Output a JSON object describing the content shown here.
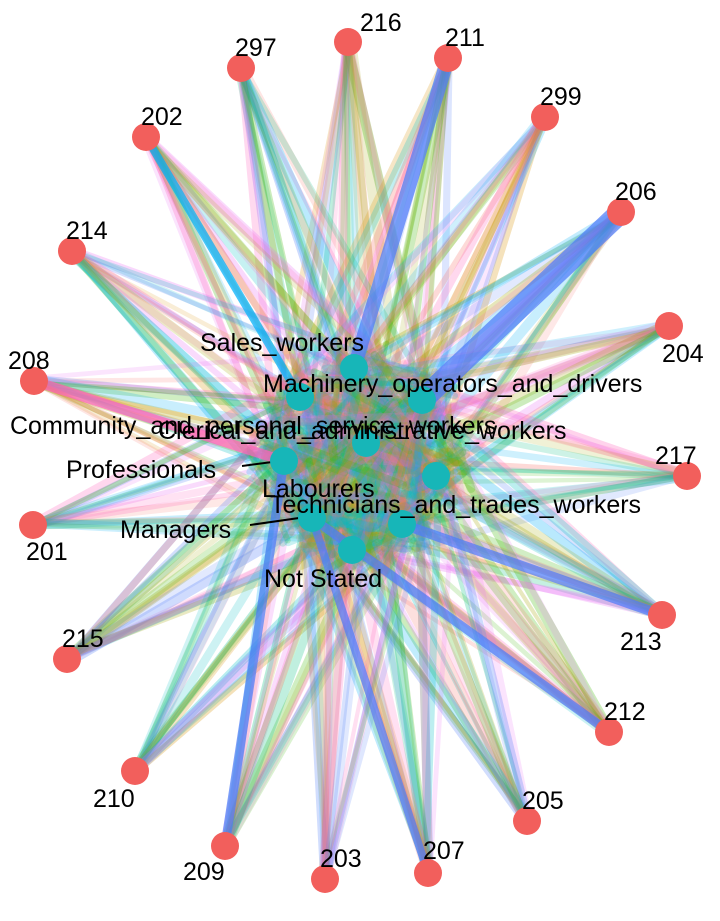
{
  "graph": {
    "colors": {
      "region_node": "#F25F5C",
      "occupation_node": "#17B6B8",
      "edge_palette": [
        "#F8766D",
        "#D89000",
        "#A3A500",
        "#39B600",
        "#00BF7D",
        "#00BFC4",
        "#00B0F6",
        "#4F7CF8",
        "#E76BF3",
        "#FF62BC"
      ]
    },
    "region_nodes": [
      {
        "id": "216",
        "label": "216"
      },
      {
        "id": "211",
        "label": "211"
      },
      {
        "id": "297",
        "label": "297"
      },
      {
        "id": "299",
        "label": "299"
      },
      {
        "id": "202",
        "label": "202"
      },
      {
        "id": "206",
        "label": "206"
      },
      {
        "id": "214",
        "label": "214"
      },
      {
        "id": "204",
        "label": "204"
      },
      {
        "id": "208",
        "label": "208"
      },
      {
        "id": "217",
        "label": "217"
      },
      {
        "id": "201",
        "label": "201"
      },
      {
        "id": "213",
        "label": "213"
      },
      {
        "id": "215",
        "label": "215"
      },
      {
        "id": "212",
        "label": "212"
      },
      {
        "id": "210",
        "label": "210"
      },
      {
        "id": "205",
        "label": "205"
      },
      {
        "id": "209",
        "label": "209"
      },
      {
        "id": "207",
        "label": "207"
      },
      {
        "id": "203",
        "label": "203"
      }
    ],
    "occupation_nodes": [
      {
        "id": "sales",
        "label": "Sales_workers"
      },
      {
        "id": "machinery",
        "label": "Machinery_operators_and_drivers"
      },
      {
        "id": "community",
        "label": "Community_and_personal_service_workers"
      },
      {
        "id": "clerical",
        "label": "Clerical_and_administrative_workers"
      },
      {
        "id": "professionals",
        "label": "Professionals"
      },
      {
        "id": "labourers",
        "label": "Labourers"
      },
      {
        "id": "technicians",
        "label": "Technicians_and_trades_workers"
      },
      {
        "id": "managers",
        "label": "Managers"
      },
      {
        "id": "notstated",
        "label": "Not Stated"
      }
    ]
  }
}
